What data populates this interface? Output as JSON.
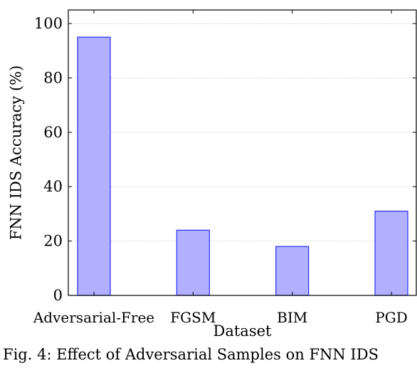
{
  "chart_data": {
    "type": "bar",
    "categories": [
      "Adversarial-Free",
      "FGSM",
      "BIM",
      "PGD"
    ],
    "values": [
      95,
      24,
      18,
      31
    ],
    "xlabel": "Dataset",
    "ylabel": "FNN IDS Accuracy (%)",
    "ylim": [
      0,
      105
    ],
    "yticks": [
      0,
      20,
      40,
      60,
      80,
      100
    ],
    "grid": true,
    "bar_fill": "#b0b0ff",
    "bar_stroke": "#2a2aff"
  },
  "caption": "Fig. 4: Effect of Adversarial Samples on FNN IDS"
}
